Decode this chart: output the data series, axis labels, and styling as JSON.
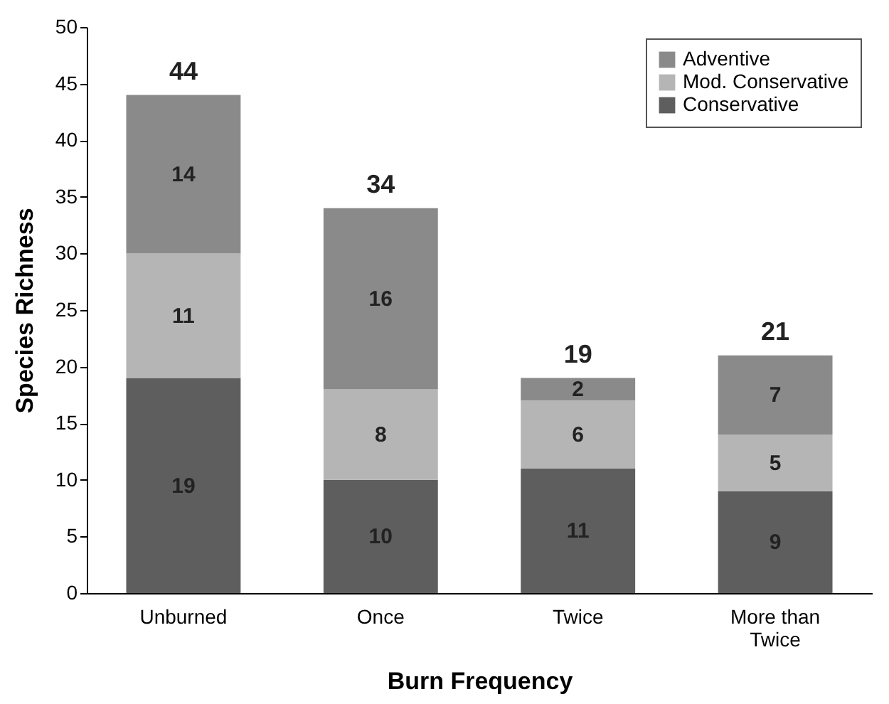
{
  "chart_data": {
    "type": "bar",
    "stacked": true,
    "xlabel": "Burn Frequency",
    "ylabel": "Species Richness",
    "categories": [
      "Unburned",
      "Once",
      "Twice",
      "More than Twice"
    ],
    "series": [
      {
        "name": "Conservative",
        "color": "#5e5e5e",
        "values": [
          19,
          10,
          11,
          9
        ]
      },
      {
        "name": "Mod. Conservative",
        "color": "#b5b5b5",
        "values": [
          11,
          8,
          6,
          5
        ]
      },
      {
        "name": "Adventive",
        "color": "#8a8a8a",
        "values": [
          14,
          16,
          2,
          7
        ]
      }
    ],
    "totals": [
      "44",
      "34",
      "19",
      "21"
    ],
    "data_labels": true,
    "ylim": [
      0,
      50
    ],
    "yticks": [
      0,
      5,
      10,
      15,
      20,
      25,
      30,
      35,
      40,
      45,
      50
    ],
    "grid": false,
    "legend": "top right"
  }
}
